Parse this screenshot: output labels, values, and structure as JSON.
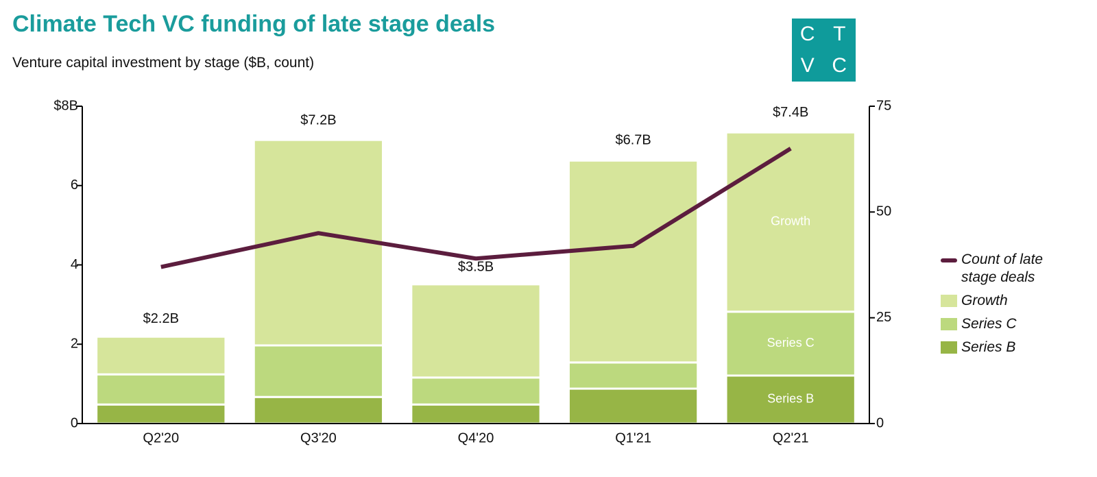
{
  "chart_data": {
    "type": "bar",
    "title": "Climate Tech VC funding of late stage deals",
    "subtitle": "Venture capital investment by stage ($B, count)",
    "logo": [
      "C",
      "T",
      "V",
      "C"
    ],
    "categories": [
      "Q2'20",
      "Q3'20",
      "Q4'20",
      "Q1'21",
      "Q2'21"
    ],
    "series": [
      {
        "name": "Series B",
        "color": "#97b546",
        "values": [
          0.48,
          0.67,
          0.48,
          0.88,
          1.21
        ]
      },
      {
        "name": "Series C",
        "color": "#bcd97e",
        "values": [
          0.76,
          1.3,
          0.68,
          0.66,
          1.61
        ]
      },
      {
        "name": "Growth",
        "color": "#d6e59b",
        "values": [
          0.95,
          5.18,
          2.35,
          5.09,
          4.52
        ]
      },
      {
        "name": "Count of late stage deals",
        "type": "line",
        "axis": "y2",
        "color": "#5c1d3e",
        "values": [
          37,
          45,
          39,
          42,
          65
        ]
      }
    ],
    "totals": {
      "values": [
        2.2,
        7.2,
        3.5,
        6.7,
        7.4
      ],
      "value_labels": [
        "$2.2B",
        "$7.2B",
        "$3.5B",
        "$6.7B",
        "$7.4B"
      ]
    },
    "ylim": [
      0,
      8
    ],
    "yticks": [
      0,
      2,
      4,
      6,
      {
        "value": 8,
        "label": "$8B"
      }
    ],
    "y2lim": [
      0,
      75
    ],
    "y2ticks": [
      0,
      25,
      50,
      75
    ],
    "legend": "right"
  }
}
